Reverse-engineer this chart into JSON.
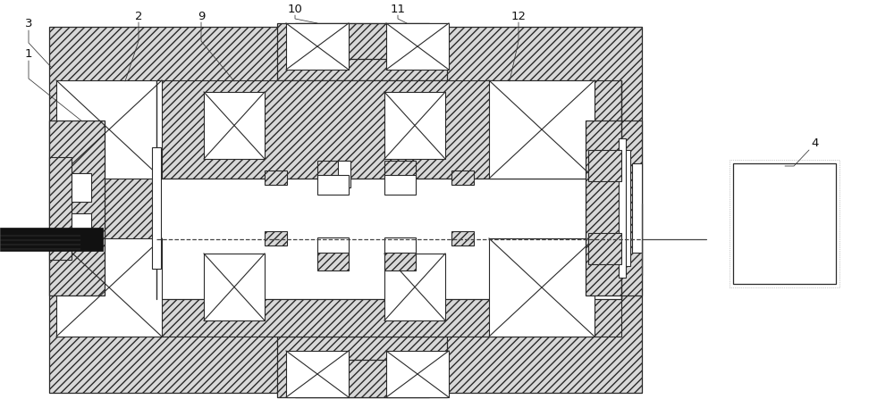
{
  "bg_color": "#ffffff",
  "lc": "#2a2a2a",
  "fig_w": 10.0,
  "fig_h": 4.66,
  "dpi": 100
}
